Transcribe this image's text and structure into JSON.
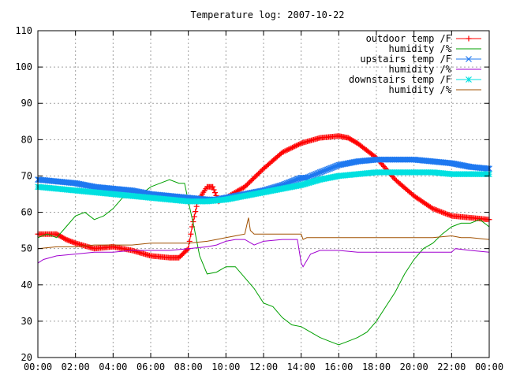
{
  "chart_data": {
    "type": "line",
    "title": "Temperature log: 2007-10-22",
    "xlabel": "",
    "ylabel": "",
    "xlim": [
      0,
      24
    ],
    "ylim": [
      20,
      110
    ],
    "x_ticks": [
      "00:00",
      "02:00",
      "04:00",
      "06:00",
      "08:00",
      "10:00",
      "12:00",
      "14:00",
      "16:00",
      "18:00",
      "20:00",
      "22:00",
      "00:00"
    ],
    "y_ticks": [
      "20",
      "30",
      "40",
      "50",
      "60",
      "70",
      "80",
      "90",
      "100",
      "110"
    ],
    "grid": true,
    "legend_position": "top-right",
    "series": [
      {
        "name": "outdoor temp /F",
        "color": "#ff0000",
        "marker": "plus",
        "x": [
          0,
          1,
          1.5,
          2,
          3,
          4,
          5,
          6,
          7,
          7.5,
          8,
          8.2,
          8.5,
          8.8,
          9,
          9.3,
          9.6,
          10,
          11,
          12,
          13,
          14,
          15,
          16,
          16.5,
          17,
          18,
          19,
          20,
          21,
          22,
          23,
          24
        ],
        "y": [
          54,
          54,
          52.5,
          51.5,
          50,
          50.5,
          49.5,
          48,
          47.5,
          47.5,
          50,
          56,
          63,
          65.5,
          67,
          67,
          63,
          64,
          67,
          72,
          76.5,
          79,
          80.5,
          81,
          80.5,
          79,
          75,
          69,
          64.5,
          61,
          59,
          58.5,
          58
        ]
      },
      {
        "name": "humidity /%",
        "color": "#00a000",
        "marker": "none",
        "x": [
          0,
          0.5,
          1,
          1.5,
          2,
          2.5,
          3,
          3.5,
          4,
          4.5,
          5,
          5.5,
          6,
          6.5,
          7,
          7.5,
          7.8,
          8,
          8.3,
          8.6,
          9,
          9.5,
          10,
          10.5,
          11,
          11.5,
          12,
          12.5,
          13,
          13.5,
          14,
          14.5,
          15,
          15.5,
          16,
          16.5,
          17,
          17.5,
          18,
          18.5,
          19,
          19.5,
          20,
          20.5,
          21,
          21.5,
          22,
          22.5,
          23,
          23.5,
          24
        ],
        "y": [
          53,
          54,
          53,
          56,
          59,
          60,
          58,
          59,
          61,
          64,
          64,
          65,
          67,
          68,
          69,
          68,
          68,
          63,
          56,
          48,
          43,
          43.5,
          45,
          45,
          42,
          39,
          35,
          34,
          31,
          29,
          28.5,
          27,
          25.5,
          24.5,
          23.5,
          24.5,
          25.5,
          27,
          30,
          34,
          38,
          43,
          47,
          50,
          51.5,
          54,
          56,
          57,
          57,
          58,
          56
        ]
      },
      {
        "name": "upstairs temp /F",
        "color": "#1e78f0",
        "marker": "x",
        "x": [
          0,
          1,
          2,
          3,
          4,
          5,
          6,
          7,
          8,
          9,
          9.5,
          10,
          11,
          12,
          13,
          13.5,
          14,
          14.3,
          15,
          16,
          17,
          18,
          19,
          20,
          21,
          22,
          23,
          24
        ],
        "y": [
          69,
          68.5,
          68,
          67,
          66.5,
          66,
          65,
          64.5,
          64,
          63.5,
          63.5,
          64,
          65,
          66,
          67.5,
          68.5,
          69.5,
          69.5,
          71,
          73,
          74,
          74.5,
          74.5,
          74.5,
          74,
          73.5,
          72.5,
          72
        ]
      },
      {
        "name": "humidity /%",
        "color": "#a000d0",
        "marker": "none",
        "x": [
          0,
          0.3,
          1,
          2,
          3,
          4,
          5,
          6,
          7,
          8,
          9,
          9.5,
          10,
          10.5,
          11,
          11.5,
          12,
          13,
          13.8,
          14,
          14.1,
          14.5,
          15,
          16,
          17,
          18,
          19,
          20,
          21,
          22,
          22.2,
          23,
          24
        ],
        "y": [
          46,
          47,
          48,
          48.5,
          49,
          49,
          49.5,
          49.5,
          49.5,
          50,
          50.5,
          51,
          52,
          52.5,
          52.5,
          51,
          52,
          52.5,
          52.5,
          46,
          45,
          48.5,
          49.5,
          49.5,
          49,
          49,
          49,
          49,
          49,
          49,
          50,
          49.5,
          49
        ]
      },
      {
        "name": "downstairs temp /F",
        "color": "#00e0e0",
        "marker": "star",
        "x": [
          0,
          1,
          2,
          3,
          4,
          5,
          6,
          7,
          8,
          9,
          10,
          11,
          12,
          13,
          14,
          15,
          16,
          17,
          18,
          19,
          20,
          21,
          22,
          23,
          24
        ],
        "y": [
          67,
          66.5,
          66,
          65.5,
          65,
          64.5,
          64,
          63.5,
          63,
          63,
          63.5,
          64.5,
          65.5,
          66.5,
          67.5,
          69,
          70,
          70.5,
          71,
          71,
          71,
          71,
          70.5,
          70.5,
          70.5
        ]
      },
      {
        "name": "humidity /%",
        "color": "#a05000",
        "marker": "none",
        "x": [
          0,
          1,
          2,
          3,
          4,
          5,
          6,
          7,
          8,
          9,
          9.5,
          10,
          10.5,
          11,
          11.2,
          11.3,
          11.5,
          12,
          13,
          14,
          14.1,
          14.3,
          15,
          16,
          17,
          18,
          19,
          20,
          21,
          22,
          22.5,
          23,
          24
        ],
        "y": [
          50,
          50.5,
          50.5,
          51,
          51,
          51,
          51.5,
          51.5,
          51.5,
          52,
          52.5,
          53,
          53.5,
          54,
          58.5,
          55,
          54,
          54,
          54,
          54,
          52.5,
          53,
          53,
          53,
          53,
          53,
          53,
          53,
          53,
          53.5,
          53,
          53,
          52.5
        ]
      }
    ]
  }
}
